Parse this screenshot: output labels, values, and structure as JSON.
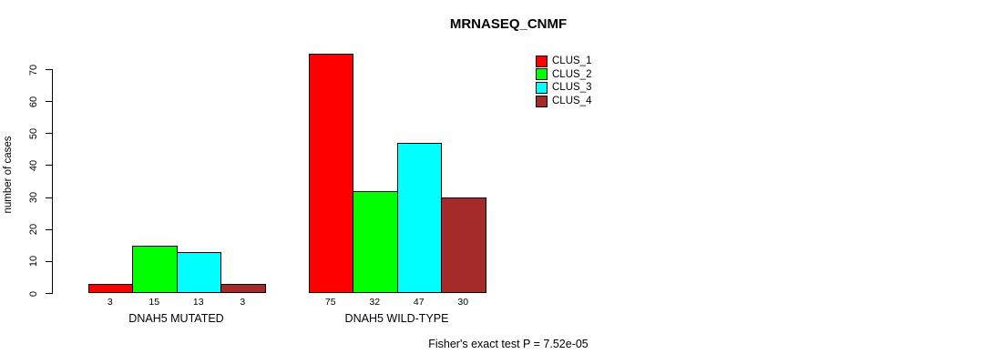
{
  "title": "MRNASEQ_CNMF",
  "ylabel": "number of cases",
  "footnote": "Fisher's exact test P = 7.52e-05",
  "chart_data": {
    "type": "bar",
    "title": "MRNASEQ_CNMF",
    "xlabel": "",
    "ylabel": "number of cases",
    "categories": [
      "DNAH5 MUTATED",
      "DNAH5 WILD-TYPE"
    ],
    "series": [
      {
        "name": "CLUS_1",
        "color": "#FF0000",
        "values": [
          3,
          75
        ]
      },
      {
        "name": "CLUS_2",
        "color": "#00FF00",
        "values": [
          15,
          32
        ]
      },
      {
        "name": "CLUS_3",
        "color": "#00FFFF",
        "values": [
          13,
          47
        ]
      },
      {
        "name": "CLUS_4",
        "color": "#A52A2A",
        "values": [
          3,
          30
        ]
      }
    ],
    "yticks": [
      0,
      10,
      20,
      30,
      40,
      50,
      60,
      70
    ],
    "ylim": [
      0,
      75
    ],
    "bar_value_labels_shown": true,
    "grid": false,
    "legend_position": "top-right",
    "annotation": "Fisher's exact test P = 7.52e-05"
  }
}
